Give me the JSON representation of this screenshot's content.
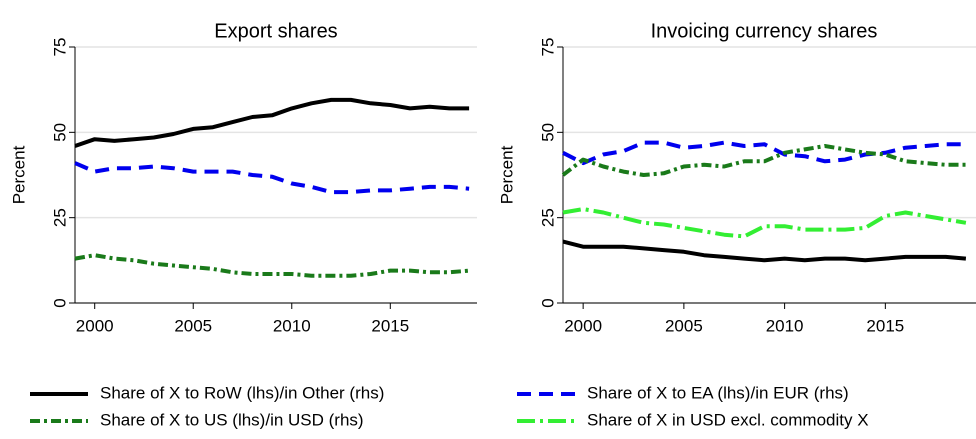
{
  "chart_data": [
    {
      "type": "line",
      "title": "Export shares",
      "ylabel": "Percent",
      "x": [
        1999,
        2000,
        2001,
        2002,
        2003,
        2004,
        2005,
        2006,
        2007,
        2008,
        2009,
        2010,
        2011,
        2012,
        2013,
        2014,
        2015,
        2016,
        2017,
        2018,
        2019
      ],
      "xlim": [
        1999,
        2019.4
      ],
      "xticks": [
        2000,
        2005,
        2010,
        2015
      ],
      "ylim": [
        0,
        75
      ],
      "yticks": [
        0,
        25,
        50,
        75
      ],
      "grid": true,
      "series": [
        {
          "color": "#000000",
          "dash": "none",
          "values": [
            46,
            48,
            47.5,
            48,
            48.5,
            49.5,
            51,
            51.5,
            53,
            54.5,
            55,
            57,
            58.5,
            59.5,
            59.5,
            58.5,
            58,
            57,
            57.5,
            57,
            57
          ]
        },
        {
          "color": "#0000ee",
          "dash": "14,8",
          "values": [
            41,
            38.5,
            39.5,
            39.5,
            40,
            39.5,
            38.5,
            38.5,
            38.5,
            37.5,
            37,
            35,
            34,
            32.5,
            32.5,
            33,
            33,
            33.5,
            34,
            34,
            33.5
          ]
        },
        {
          "color": "#1a7a1a",
          "dash": "10,4,3,4",
          "values": [
            13,
            14,
            13,
            12.5,
            11.5,
            11,
            10.5,
            10,
            9,
            8.5,
            8.5,
            8.5,
            8,
            8,
            8,
            8.5,
            9.5,
            9.5,
            9,
            9,
            9.5
          ]
        }
      ]
    },
    {
      "type": "line",
      "title": "Invoicing currency shares",
      "ylabel": "Percent",
      "x": [
        1999,
        2000,
        2001,
        2002,
        2003,
        2004,
        2005,
        2006,
        2007,
        2008,
        2009,
        2010,
        2011,
        2012,
        2013,
        2014,
        2015,
        2016,
        2017,
        2018,
        2019
      ],
      "xlim": [
        1999,
        2019.5
      ],
      "xticks": [
        2000,
        2005,
        2010,
        2015
      ],
      "ylim": [
        0,
        75
      ],
      "yticks": [
        0,
        25,
        50,
        75
      ],
      "grid": true,
      "series": [
        {
          "color": "#000000",
          "dash": "none",
          "values": [
            18,
            16.5,
            16.5,
            16.5,
            16,
            15.5,
            15,
            14,
            13.5,
            13,
            12.5,
            13,
            12.5,
            13,
            13,
            12.5,
            13,
            13.5,
            13.5,
            13.5,
            13
          ]
        },
        {
          "color": "#0000ee",
          "dash": "14,8",
          "values": [
            44,
            41,
            43.5,
            44.5,
            47,
            47,
            45.5,
            46,
            47,
            46,
            46.5,
            43.5,
            43,
            41.5,
            42,
            43.5,
            44,
            45.5,
            46,
            46.5,
            46.5
          ]
        },
        {
          "color": "#1a7a1a",
          "dash": "10,4,3,4",
          "values": [
            37.5,
            42,
            40,
            38.5,
            37.5,
            38,
            40,
            40.5,
            40,
            41.5,
            41.5,
            44,
            45,
            46,
            45,
            44,
            43.5,
            41.5,
            41,
            40.5,
            40.5
          ]
        },
        {
          "color": "#33ee33",
          "dash": "18,5,3,5",
          "values": [
            26.5,
            27.5,
            26.5,
            25,
            23.5,
            23,
            22,
            21,
            20,
            19.5,
            22.5,
            22.5,
            21.5,
            21.5,
            21.5,
            22,
            25.5,
            26.5,
            25.5,
            24.5,
            23.5
          ]
        }
      ]
    }
  ],
  "legend": [
    {
      "name": "Share of X to RoW (lhs)/in Other (rhs)",
      "color": "#000000",
      "dash": "none"
    },
    {
      "name": "Share of X to EA (lhs)/in EUR (rhs)",
      "color": "#0000ee",
      "dash": "14,8"
    },
    {
      "name": "Share of X to US (lhs)/in USD (rhs)",
      "color": "#1a7a1a",
      "dash": "10,4,3,4"
    },
    {
      "name": "Share of X in USD excl. commodity X",
      "color": "#33ee33",
      "dash": "18,5,3,5"
    }
  ]
}
